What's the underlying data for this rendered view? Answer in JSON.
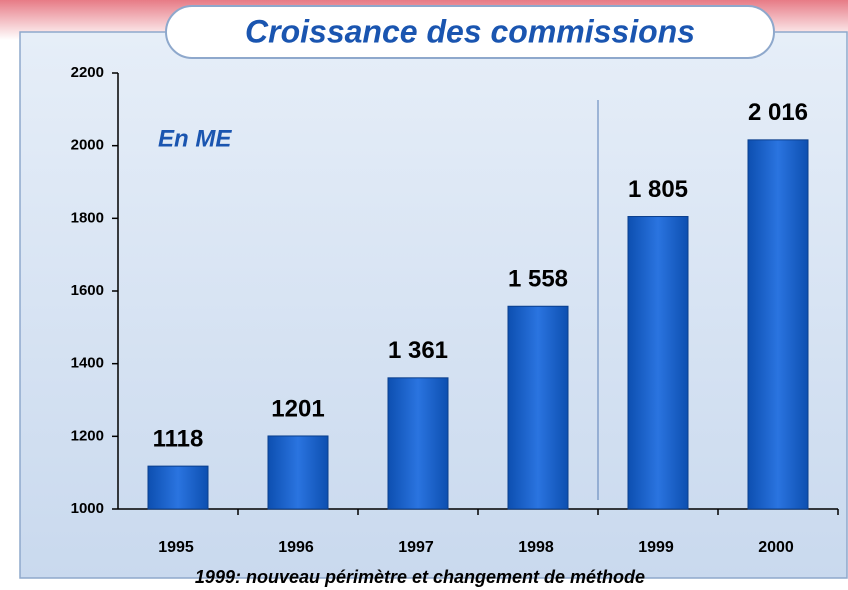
{
  "chart_data": {
    "type": "bar",
    "title": "Croissance des commissions",
    "subtitle": "En ME",
    "annotation": "1999: nouveau périmètre et changement de méthode",
    "categories": [
      "1995",
      "1996",
      "1997",
      "1998",
      "1999",
      "2000"
    ],
    "values": [
      1118,
      1201,
      1361,
      1558,
      1805,
      2016
    ],
    "value_labels": [
      "1118",
      "1201",
      "1 361",
      "1 558",
      "1 805",
      "2 016"
    ],
    "color": "#1560c8",
    "ylim": [
      1000,
      2200
    ],
    "yticks": [
      1000,
      1200,
      1400,
      1600,
      1800,
      2000,
      2200
    ],
    "grid": false
  }
}
